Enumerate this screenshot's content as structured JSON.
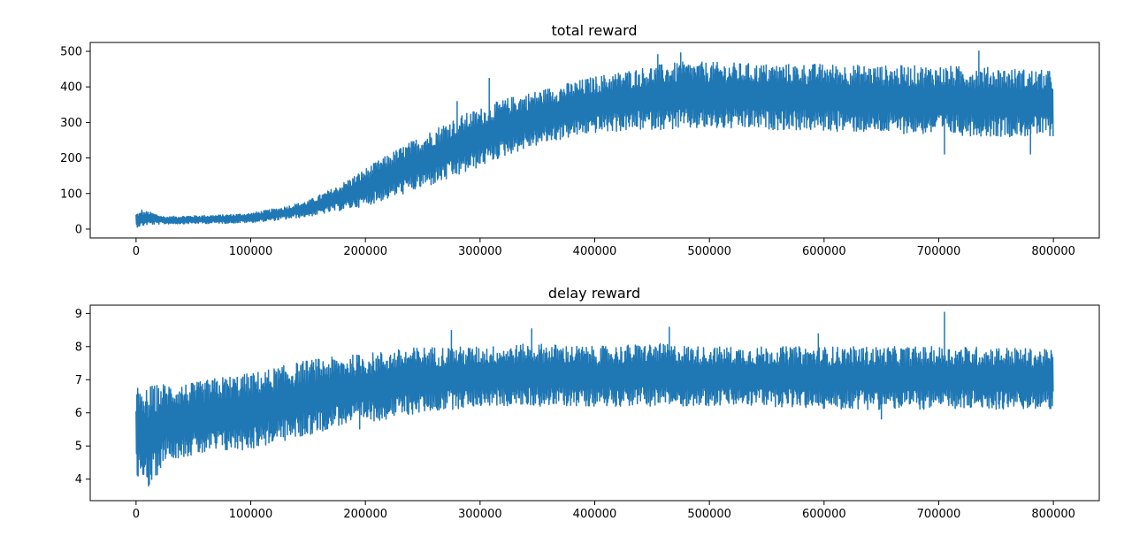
{
  "chart_data": [
    {
      "type": "line",
      "title": "total reward",
      "xlabel": "",
      "ylabel": "",
      "xlim": [
        -40000,
        840000
      ],
      "ylim": [
        -25,
        525
      ],
      "xticks": [
        0,
        100000,
        200000,
        300000,
        400000,
        500000,
        600000,
        700000,
        800000
      ],
      "yticks": [
        0,
        100,
        200,
        300,
        400,
        500
      ],
      "grid": false,
      "legend": "none",
      "color": "#1f77b4",
      "series": [
        {
          "x": [
            0,
            10000,
            25000,
            50000,
            75000,
            100000,
            125000,
            150000,
            175000,
            200000,
            225000,
            250000,
            275000,
            300000,
            325000,
            350000,
            375000,
            400000,
            425000,
            450000,
            475000,
            500000,
            550000,
            600000,
            650000,
            700000,
            750000,
            800000
          ],
          "low": [
            5,
            12,
            14,
            15,
            16,
            18,
            25,
            35,
            50,
            65,
            90,
            115,
            140,
            175,
            210,
            235,
            255,
            270,
            275,
            280,
            280,
            280,
            280,
            275,
            270,
            265,
            260,
            260
          ],
          "high": [
            45,
            50,
            35,
            38,
            40,
            45,
            60,
            80,
            120,
            170,
            220,
            265,
            310,
            340,
            370,
            390,
            410,
            430,
            445,
            460,
            470,
            470,
            465,
            465,
            460,
            460,
            455,
            445
          ],
          "spikes": [
            [
              5000,
              55
            ],
            [
              280000,
              360
            ],
            [
              308000,
              425
            ],
            [
              455000,
              492
            ],
            [
              475000,
              497
            ],
            [
              735000,
              502
            ],
            [
              705000,
              210
            ],
            [
              780000,
              210
            ]
          ]
        }
      ]
    },
    {
      "type": "line",
      "title": "delay reward",
      "xlabel": "",
      "ylabel": "",
      "xlim": [
        -40000,
        840000
      ],
      "ylim": [
        3.35,
        9.25
      ],
      "xticks": [
        0,
        100000,
        200000,
        300000,
        400000,
        500000,
        600000,
        700000,
        800000
      ],
      "yticks": [
        4,
        5,
        6,
        7,
        8,
        9
      ],
      "grid": false,
      "legend": "none",
      "color": "#1f77b4",
      "series": [
        {
          "x": [
            0,
            5000,
            10000,
            25000,
            50000,
            75000,
            100000,
            125000,
            150000,
            175000,
            200000,
            250000,
            300000,
            350000,
            400000,
            450000,
            500000,
            550000,
            600000,
            650000,
            700000,
            750000,
            800000
          ],
          "low": [
            3.8,
            4.2,
            3.55,
            4.6,
            4.7,
            4.8,
            4.9,
            5.1,
            5.3,
            5.6,
            5.7,
            6.0,
            6.2,
            6.2,
            6.2,
            6.2,
            6.2,
            6.2,
            6.1,
            6.1,
            6.1,
            6.1,
            6.1
          ],
          "high": [
            7.0,
            6.5,
            6.8,
            6.9,
            6.9,
            7.1,
            7.2,
            7.4,
            7.6,
            7.7,
            7.8,
            8.0,
            8.0,
            8.1,
            8.0,
            8.1,
            8.0,
            8.0,
            8.0,
            8.0,
            8.0,
            8.0,
            7.9
          ],
          "spikes": [
            [
              345000,
              8.55
            ],
            [
              465000,
              8.6
            ],
            [
              705000,
              9.05
            ],
            [
              275000,
              8.5
            ],
            [
              595000,
              8.4
            ],
            [
              195000,
              5.5
            ],
            [
              650000,
              5.8
            ]
          ]
        }
      ]
    }
  ]
}
